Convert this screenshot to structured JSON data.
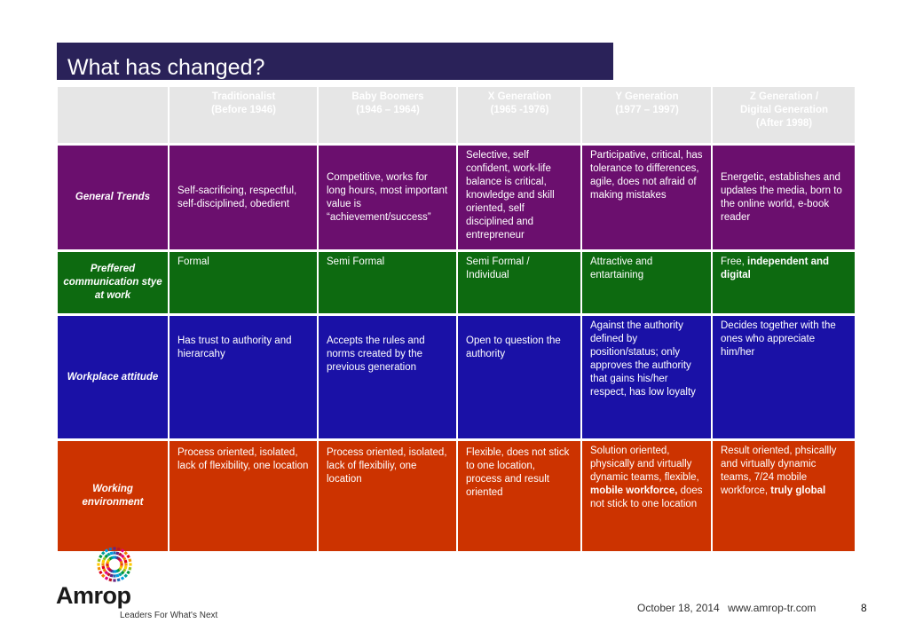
{
  "title": "What has changed?",
  "header": {
    "corner": "",
    "columns": [
      {
        "name": "Traditionalist",
        "range": "(Before 1946)"
      },
      {
        "name": "Baby Boomers",
        "range": "(1946 – 1964)"
      },
      {
        "name": "X Generation",
        "range": "(1965 -1976)"
      },
      {
        "name": "Y Generation",
        "range": "(1977 – 1997)"
      },
      {
        "name": "Z Generation /",
        "name2": "Digital Generation",
        "range": "(After 1998)"
      }
    ]
  },
  "rows": {
    "trends": {
      "label": "General Trends",
      "cells": [
        "Self-sacrificing, respectful, self-disciplined, obedient",
        "Competitive, works for long hours, most important value is “achievement/success”",
        "Selective, self confident, work-life balance is critical, knowledge and skill oriented, self disciplined and entrepreneur",
        "Participative, critical, has tolerance to differences, agile, does not afraid of making mistakes",
        "Energetic, establishes and updates the media, born to the online world, e-book reader"
      ]
    },
    "comm": {
      "label": "Preffered communication stye at work",
      "cells": [
        "Formal",
        "Semi Formal",
        "Semi Formal / Individual",
        "Attractive and entartaining"
      ],
      "c5a": "Free,",
      "c5b": "independent and digital"
    },
    "attitude": {
      "label": "Workplace attitude",
      "cells": [
        "Has trust to authority and hierarcahy",
        "Accepts the rules and norms created by the previous generation",
        "Open to question the authority",
        "Against the authority defined by position/status; only approves the authority that gains his/her respect, has low loyalty",
        "Decides together with the ones who appreciate him/her"
      ]
    },
    "env": {
      "label": "Working environment",
      "cells": [
        "Process oriented, isolated, lack of flexibility, one location",
        "Process oriented, isolated, lack of flexibiliy, one location",
        "Flexible, does not stick to one location, process and result oriented"
      ],
      "c4a": "Solution oriented, physically and virtually dynamic teams, flexible,",
      "c4b": "mobile workforce,",
      "c4c": "does not stick to one location",
      "c5a": "Result oriented, phsicallly and virtually dynamic teams, 7/24 mobile workforce,",
      "c5b": "truly global"
    }
  },
  "footer": {
    "date": "October 18, 2014",
    "url": "www.amrop-tr.com",
    "page": "8"
  },
  "logo": {
    "word": "Amrop",
    "tagline": "Leaders For What's Next"
  }
}
